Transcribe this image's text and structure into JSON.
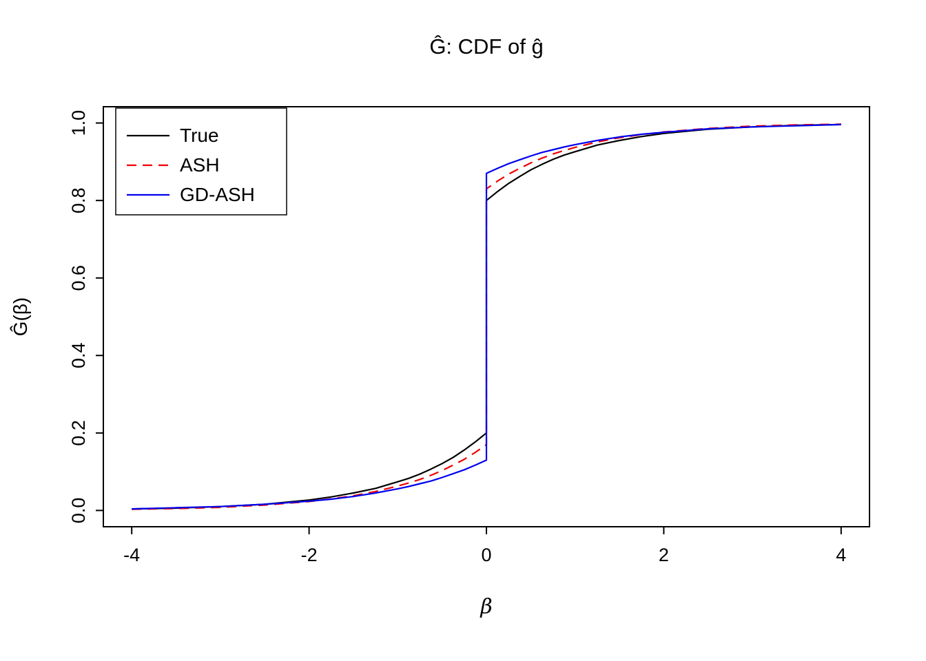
{
  "chart_data": {
    "type": "line",
    "title": "Ĝ: CDF of ĝ",
    "xlabel": "β",
    "ylabel": "Ĝ(β)",
    "xlim": [
      -4.32,
      4.32
    ],
    "ylim": [
      -0.042,
      1.042
    ],
    "grid": false,
    "legend_position": "topleft",
    "x_ticks": {
      "values": [
        -4,
        -2,
        0,
        2,
        4
      ],
      "labels": [
        "-4",
        "-2",
        "0",
        "2",
        "4"
      ]
    },
    "y_ticks": {
      "values": [
        0.0,
        0.2,
        0.4,
        0.6,
        0.8,
        1.0
      ],
      "labels": [
        "0.0",
        "0.2",
        "0.4",
        "0.6",
        "0.8",
        "1.0"
      ]
    },
    "x": [
      -4,
      -3.5,
      -3,
      -2.5,
      -2,
      -1.75,
      -1.5,
      -1.25,
      -1,
      -0.875,
      -0.75,
      -0.625,
      -0.5,
      -0.375,
      -0.25,
      -0.125,
      0,
      0,
      0.125,
      0.25,
      0.375,
      0.5,
      0.625,
      0.75,
      0.875,
      1,
      1.25,
      1.5,
      1.75,
      2,
      2.5,
      3,
      3.5,
      4
    ],
    "series": [
      {
        "name": "True",
        "color": "#000000",
        "linetype": "solid",
        "values": [
          0.004,
          0.006,
          0.01,
          0.016,
          0.027,
          0.035,
          0.045,
          0.057,
          0.074,
          0.083,
          0.094,
          0.107,
          0.121,
          0.137,
          0.156,
          0.177,
          0.2,
          0.8,
          0.823,
          0.844,
          0.862,
          0.879,
          0.893,
          0.906,
          0.917,
          0.926,
          0.943,
          0.955,
          0.965,
          0.973,
          0.984,
          0.99,
          0.994,
          0.996
        ]
      },
      {
        "name": "ASH",
        "color": "#ee0000",
        "linetype": "dashed",
        "values": [
          0.003,
          0.005,
          0.008,
          0.014,
          0.023,
          0.03,
          0.038,
          0.049,
          0.063,
          0.071,
          0.08,
          0.091,
          0.103,
          0.117,
          0.132,
          0.15,
          0.17,
          0.83,
          0.85,
          0.868,
          0.883,
          0.897,
          0.909,
          0.92,
          0.929,
          0.937,
          0.951,
          0.962,
          0.97,
          0.977,
          0.986,
          0.992,
          0.995,
          0.997
        ]
      },
      {
        "name": "GD-ASH",
        "color": "#0000ee",
        "linetype": "solid",
        "values": [
          0.004,
          0.007,
          0.01,
          0.016,
          0.024,
          0.029,
          0.036,
          0.045,
          0.056,
          0.062,
          0.069,
          0.076,
          0.085,
          0.095,
          0.105,
          0.117,
          0.13,
          0.87,
          0.883,
          0.895,
          0.905,
          0.915,
          0.924,
          0.931,
          0.938,
          0.944,
          0.955,
          0.964,
          0.971,
          0.976,
          0.985,
          0.99,
          0.993,
          0.996
        ]
      }
    ]
  }
}
